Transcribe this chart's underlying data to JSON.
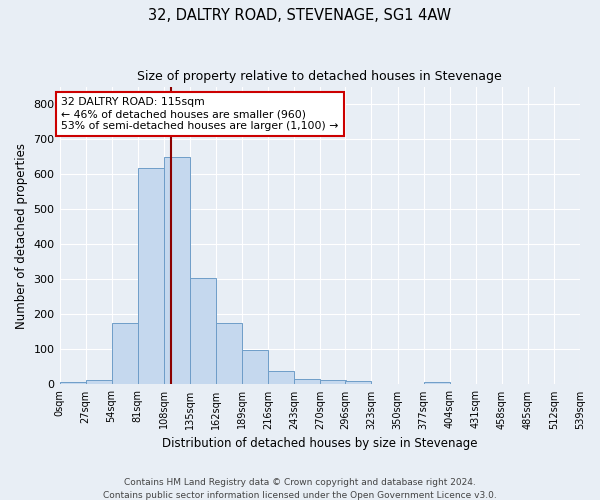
{
  "title": "32, DALTRY ROAD, STEVENAGE, SG1 4AW",
  "subtitle": "Size of property relative to detached houses in Stevenage",
  "xlabel": "Distribution of detached houses by size in Stevenage",
  "ylabel": "Number of detached properties",
  "bar_color": "#c5d8ee",
  "bar_edge_color": "#6e9dc8",
  "background_color": "#e8eef5",
  "grid_color": "#ffffff",
  "bin_edges": [
    0,
    27,
    54,
    81,
    108,
    135,
    162,
    189,
    216,
    243,
    270,
    296,
    323,
    350,
    377,
    404,
    431,
    458,
    485,
    512,
    539
  ],
  "bin_labels": [
    "0sqm",
    "27sqm",
    "54sqm",
    "81sqm",
    "108sqm",
    "135sqm",
    "162sqm",
    "189sqm",
    "216sqm",
    "243sqm",
    "270sqm",
    "296sqm",
    "323sqm",
    "350sqm",
    "377sqm",
    "404sqm",
    "431sqm",
    "458sqm",
    "485sqm",
    "512sqm",
    "539sqm"
  ],
  "counts": [
    8,
    13,
    175,
    618,
    650,
    305,
    175,
    97,
    38,
    15,
    12,
    10,
    0,
    0,
    8,
    0,
    0,
    0,
    0,
    0
  ],
  "vline_x": 115,
  "annotation_title": "32 DALTRY ROAD: 115sqm",
  "annotation_line1": "← 46% of detached houses are smaller (960)",
  "annotation_line2": "53% of semi-detached houses are larger (1,100) →",
  "annotation_box_color": "#ffffff",
  "annotation_box_edgecolor": "#cc0000",
  "vline_color": "#8b0000",
  "footer1": "Contains HM Land Registry data © Crown copyright and database right 2024.",
  "footer2": "Contains public sector information licensed under the Open Government Licence v3.0.",
  "ylim": [
    0,
    850
  ],
  "yticks": [
    0,
    100,
    200,
    300,
    400,
    500,
    600,
    700,
    800
  ],
  "figsize": [
    6.0,
    5.0
  ],
  "dpi": 100
}
